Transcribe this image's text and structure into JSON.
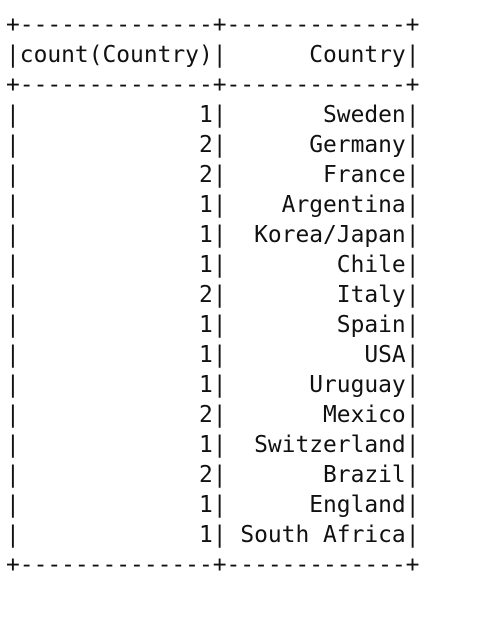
{
  "table": {
    "border_line": "+--------------+-------------+",
    "col_widths": [
      14,
      13
    ],
    "headers": [
      "count(Country)",
      "Country"
    ],
    "rows": [
      {
        "count": "1",
        "country": "Sweden"
      },
      {
        "count": "2",
        "country": "Germany"
      },
      {
        "count": "2",
        "country": "France"
      },
      {
        "count": "1",
        "country": "Argentina"
      },
      {
        "count": "1",
        "country": "Korea/Japan"
      },
      {
        "count": "1",
        "country": "Chile"
      },
      {
        "count": "2",
        "country": "Italy"
      },
      {
        "count": "1",
        "country": "Spain"
      },
      {
        "count": "1",
        "country": "USA"
      },
      {
        "count": "1",
        "country": "Uruguay"
      },
      {
        "count": "2",
        "country": "Mexico"
      },
      {
        "count": "1",
        "country": "Switzerland"
      },
      {
        "count": "2",
        "country": "Brazil"
      },
      {
        "count": "1",
        "country": "England"
      },
      {
        "count": "1",
        "country": "South Africa"
      }
    ]
  }
}
